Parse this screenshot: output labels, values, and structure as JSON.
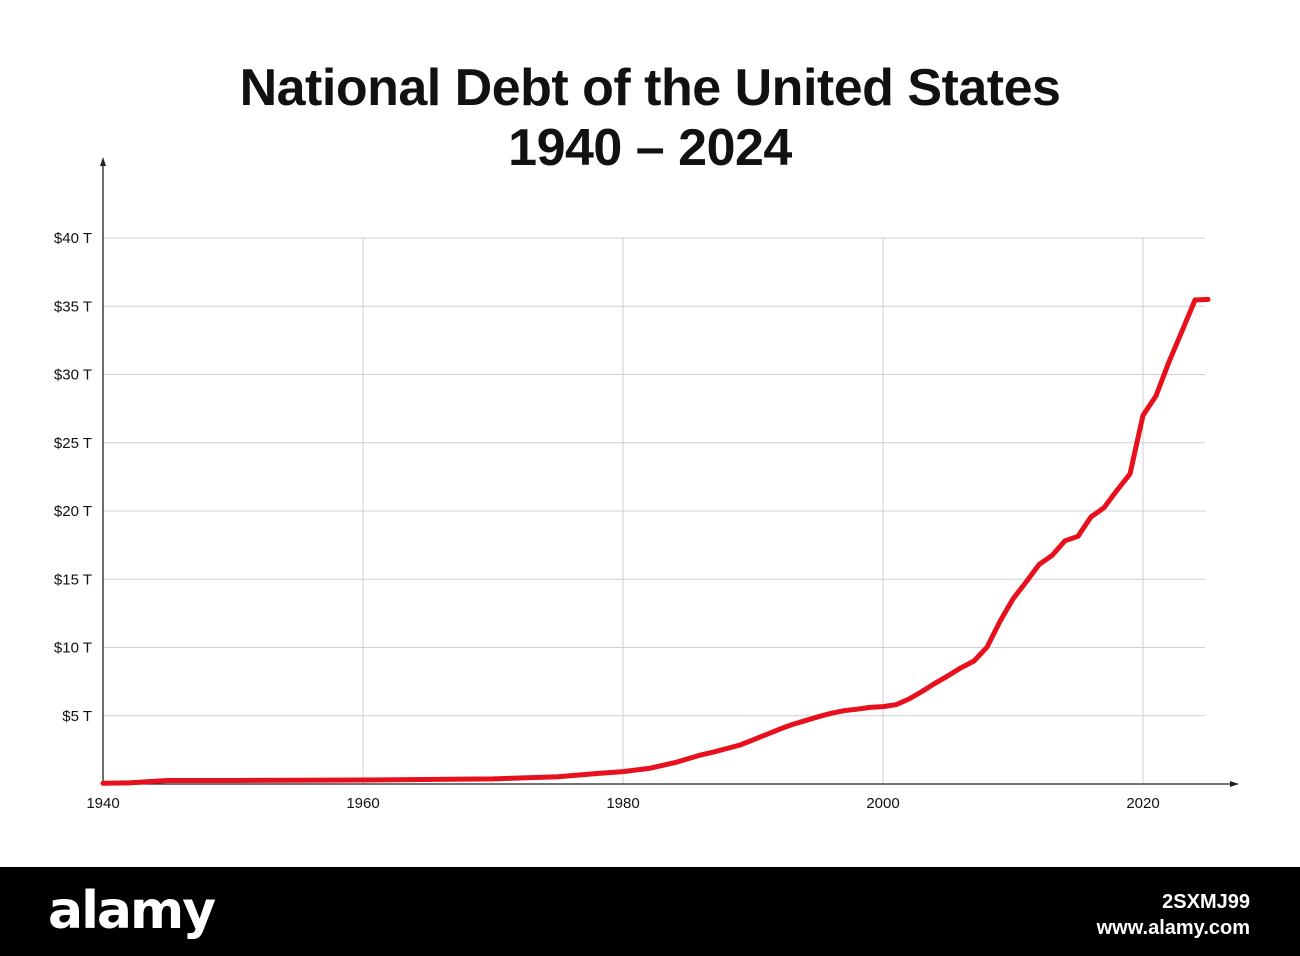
{
  "chart_data": {
    "type": "line",
    "title": "National Debt of the United States",
    "subtitle": "1940 – 2024",
    "xlabel": "",
    "ylabel": "",
    "xlim": [
      1940,
      2026
    ],
    "ylim": [
      0,
      40
    ],
    "x_ticks": [
      1940,
      1960,
      1980,
      2000,
      2020
    ],
    "y_ticks": [
      {
        "value": 5,
        "label": "$5 T"
      },
      {
        "value": 10,
        "label": "$10 T"
      },
      {
        "value": 15,
        "label": "$15 T"
      },
      {
        "value": 20,
        "label": "$20 T"
      },
      {
        "value": 25,
        "label": "$25 T"
      },
      {
        "value": 30,
        "label": "$30 T"
      },
      {
        "value": 35,
        "label": "$35 T"
      },
      {
        "value": 40,
        "label": "$40 T"
      }
    ],
    "grid": true,
    "line_color": "#e8101c",
    "grid_color": "#c9d2d6",
    "series": [
      {
        "x": [
          1940,
          1942,
          1944,
          1945,
          1950,
          1960,
          1970,
          1975,
          1978,
          1980,
          1982,
          1984,
          1986,
          1987,
          1988,
          1989,
          1990,
          1992,
          1993,
          1994,
          1995,
          1996,
          1997,
          1998,
          1999,
          2000,
          2001,
          2002,
          2003,
          2004,
          2005,
          2006,
          2007,
          2008,
          2009,
          2010,
          2011,
          2012,
          2013,
          2014,
          2015,
          2016,
          2017,
          2018,
          2019,
          2020,
          2021,
          2022,
          2023,
          2024,
          2025
        ],
        "y": [
          0.05,
          0.08,
          0.2,
          0.26,
          0.26,
          0.29,
          0.37,
          0.53,
          0.77,
          0.91,
          1.14,
          1.57,
          2.13,
          2.35,
          2.6,
          2.86,
          3.23,
          4.0,
          4.35,
          4.64,
          4.92,
          5.18,
          5.37,
          5.48,
          5.61,
          5.67,
          5.81,
          6.23,
          6.78,
          7.38,
          7.93,
          8.51,
          9.01,
          10.02,
          11.91,
          13.56,
          14.79,
          16.07,
          16.74,
          17.82,
          18.15,
          19.57,
          20.24,
          21.52,
          22.72,
          27.0,
          28.43,
          30.93,
          33.17,
          35.46,
          35.5
        ]
      }
    ]
  },
  "footer": {
    "logo": "alamy",
    "image_id": "2SXMJ99",
    "site": "www.alamy.com"
  }
}
